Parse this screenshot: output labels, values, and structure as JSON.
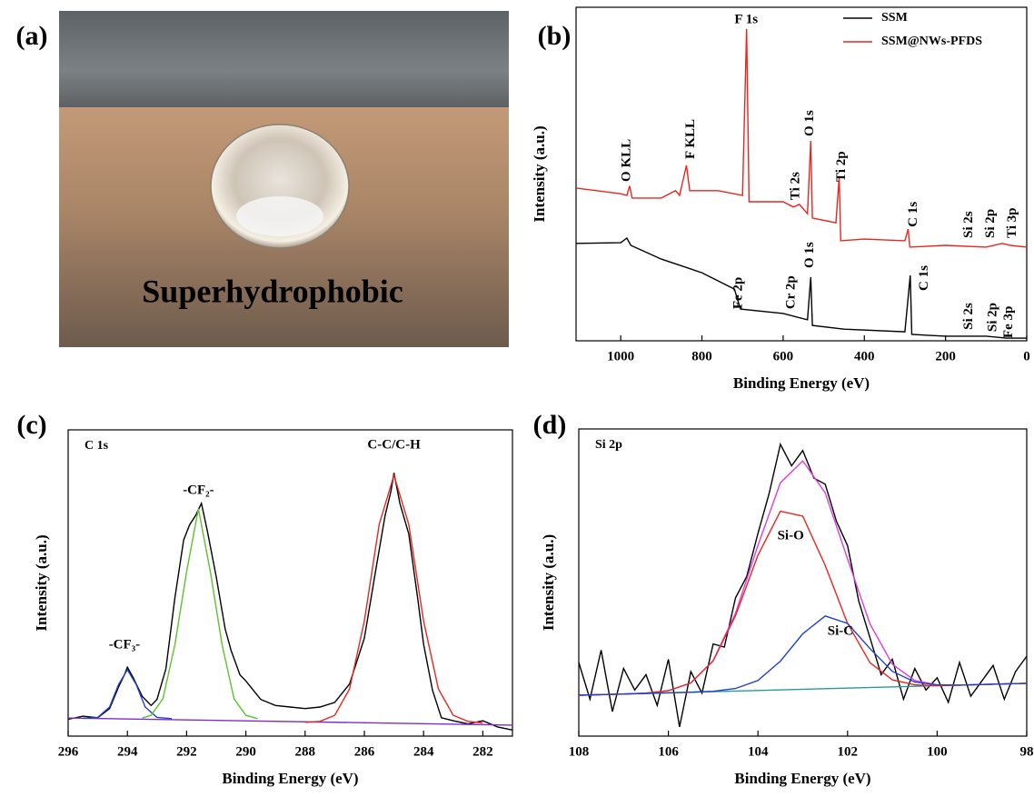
{
  "photo": {
    "label": "(a)",
    "caption": "Superhydrophobic"
  },
  "chart_data": [
    {
      "type": "line",
      "panel_label": "(b)",
      "xlabel": "Binding Energy (eV)",
      "ylabel": "Intensity (a.u.)",
      "xlim": [
        1110,
        0
      ],
      "xticks": [
        1000,
        800,
        600,
        400,
        200,
        0
      ],
      "ylim": [
        0,
        100
      ],
      "legend": true,
      "series": [
        {
          "name": "SSM",
          "color": "#000000",
          "x": [
            1110,
            1000,
            985,
            975,
            900,
            800,
            720,
            712,
            705,
            600,
            540,
            532,
            528,
            450,
            300,
            287,
            283,
            200,
            100,
            50,
            0
          ],
          "values": [
            29.2,
            29.4,
            30.8,
            28.6,
            24.5,
            20.4,
            15.5,
            12.3,
            9.5,
            8.2,
            6.3,
            19.1,
            4.6,
            3.5,
            2.7,
            19.6,
            1.9,
            1.4,
            1.4,
            0.8,
            0.8
          ]
        },
        {
          "name": "SSM@NWs-PFDS",
          "color": "#e8261f",
          "x": [
            1110,
            1000,
            985,
            978,
            972,
            900,
            865,
            855,
            838,
            830,
            760,
            700,
            690,
            684,
            600,
            575,
            560,
            540,
            532,
            528,
            470,
            462,
            458,
            400,
            300,
            292,
            288,
            200,
            100,
            60,
            40,
            0
          ],
          "values": [
            45.8,
            44.1,
            43.6,
            46.4,
            42.8,
            42.8,
            45.0,
            43.6,
            52.6,
            45.0,
            45.0,
            43.6,
            93.5,
            41.7,
            41.7,
            40.1,
            40.9,
            38.1,
            59.9,
            36.8,
            35.4,
            49.0,
            30.0,
            30.5,
            30.0,
            33.5,
            28.1,
            28.6,
            28.1,
            29.2,
            28.6,
            28.1
          ]
        }
      ],
      "annotations": [
        {
          "text": "O KLL",
          "x": 984,
          "y": 47.7,
          "vertical": true
        },
        {
          "text": "F KLL",
          "x": 827,
          "y": 54.5,
          "vertical": true
        },
        {
          "text": "F 1s",
          "x": 691,
          "y": 96.2,
          "vertical": false
        },
        {
          "text": "Ti 2s",
          "x": 568,
          "y": 42.2,
          "vertical": true
        },
        {
          "text": "O 1s",
          "x": 534,
          "y": 61.3,
          "vertical": true
        },
        {
          "text": "Ti 2p",
          "x": 455,
          "y": 47.7,
          "vertical": true
        },
        {
          "text": "C 1s",
          "x": 279,
          "y": 34.1,
          "vertical": true
        },
        {
          "text": "Si 2s",
          "x": 142,
          "y": 30.8,
          "vertical": true
        },
        {
          "text": "Si 2p",
          "x": 88,
          "y": 30.8,
          "vertical": true
        },
        {
          "text": "Ti 3p",
          "x": 34,
          "y": 30.8,
          "vertical": true
        },
        {
          "text": "Fe 2p",
          "x": 709,
          "y": 9.5,
          "vertical": true
        },
        {
          "text": "Cr 2p",
          "x": 579,
          "y": 9.5,
          "vertical": true
        },
        {
          "text": "O 1s",
          "x": 534,
          "y": 21.8,
          "vertical": true
        },
        {
          "text": "C 1s",
          "x": 252,
          "y": 15.0,
          "vertical": true
        },
        {
          "text": "Si 2s",
          "x": 142,
          "y": 3.3,
          "vertical": true
        },
        {
          "text": "Si 2p",
          "x": 83,
          "y": 2.7,
          "vertical": true
        },
        {
          "text": "Fe 3p",
          "x": 43,
          "y": 0.8,
          "vertical": true
        }
      ]
    },
    {
      "type": "line",
      "panel_label": "(c)",
      "inset_label": "C 1s",
      "xlabel": "Binding Energy (eV)",
      "ylabel": "Intensity (a.u.)",
      "xlim": [
        296,
        281
      ],
      "xticks": [
        296,
        294,
        292,
        290,
        288,
        286,
        284,
        282
      ],
      "ylim": [
        0,
        100
      ],
      "legend": false,
      "series": [
        {
          "color": "#000000",
          "x": [
            296,
            295.5,
            295,
            294.6,
            294.3,
            294.1,
            294,
            293.8,
            293.5,
            293.2,
            293,
            292.7,
            292.4,
            292.1,
            291.9,
            291.7,
            291.5,
            291.3,
            291,
            290.7,
            290.5,
            290.2,
            290,
            289.5,
            289,
            288.5,
            288,
            287.5,
            287,
            286.5,
            286,
            285.6,
            285.3,
            285.1,
            285,
            284.8,
            284.5,
            284.2,
            284,
            283.7,
            283.4,
            283,
            282.5,
            282,
            281.5,
            281
          ],
          "values": [
            5.5,
            6.5,
            6,
            9,
            16,
            20,
            22.5,
            19,
            13,
            10,
            12,
            22,
            45,
            64,
            69,
            72,
            76,
            67,
            52,
            35,
            28,
            20,
            18,
            12,
            10,
            9.5,
            9,
            9.5,
            11,
            17,
            32,
            55,
            72,
            80,
            86,
            76,
            66,
            45,
            30,
            15,
            6,
            5,
            4,
            5,
            3,
            2
          ]
        },
        {
          "color": "#7b2fd0",
          "x": [
            296,
            281
          ],
          "values": [
            5.9,
            3.6
          ]
        },
        {
          "color": "#1f3fd1",
          "x": [
            295.5,
            295,
            294.6,
            294.3,
            294,
            293.7,
            293.4,
            293,
            292.5
          ],
          "values": [
            5.8,
            6.1,
            9.5,
            16.8,
            21.7,
            16.8,
            9.5,
            6.1,
            5.7
          ]
        },
        {
          "color": "#5cc42b",
          "x": [
            293.5,
            293.2,
            292.8,
            292.4,
            292,
            291.6,
            291.2,
            290.8,
            290.4,
            290,
            289.6
          ],
          "values": [
            5.9,
            6.8,
            12.2,
            29.7,
            53.7,
            74.2,
            53.7,
            29.7,
            12.2,
            6.8,
            5.7
          ]
        },
        {
          "color": "#e8261f",
          "x": [
            288,
            287.5,
            287,
            286.5,
            286,
            285.5,
            285,
            284.5,
            284,
            283.5,
            283,
            282.5,
            282
          ],
          "values": [
            4.5,
            4.8,
            6.8,
            15.4,
            37.6,
            69.1,
            85.2,
            69.1,
            37.6,
            15.4,
            6.8,
            4.8,
            4.3
          ]
        }
      ],
      "annotations": [
        {
          "text": "-CF₃-",
          "x": 294.1,
          "y": 29.7,
          "vertical": false
        },
        {
          "text": "-CF₂-",
          "x": 291.6,
          "y": 80.1,
          "vertical": false
        },
        {
          "text": "C-C/C-H",
          "x": 285.0,
          "y": 95.0,
          "vertical": false
        }
      ]
    },
    {
      "type": "line",
      "panel_label": "(d)",
      "inset_label": "Si 2p",
      "xlabel": "Binding Energy (eV)",
      "ylabel": "Intensity (a.u.)",
      "xlim": [
        108,
        98
      ],
      "xticks": [
        108,
        106,
        104,
        102,
        100,
        98
      ],
      "ylim": [
        0,
        100
      ],
      "legend": false,
      "series": [
        {
          "color": "#000000",
          "x": [
            108,
            107.75,
            107.5,
            107.25,
            107,
            106.75,
            106.5,
            106.25,
            106,
            105.75,
            105.5,
            105.25,
            105,
            104.75,
            104.5,
            104.25,
            104,
            103.75,
            103.5,
            103.25,
            103,
            102.75,
            102.5,
            102.25,
            102,
            101.75,
            101.5,
            101.25,
            101,
            100.75,
            100.5,
            100.25,
            100,
            99.75,
            99.5,
            99.25,
            99,
            98.75,
            98.5,
            98.25,
            98
          ],
          "values": [
            24,
            12,
            28,
            8,
            22,
            15,
            20,
            10,
            25,
            3,
            21,
            14,
            30,
            29,
            45,
            52,
            66,
            79,
            95,
            88,
            93,
            84,
            82,
            70,
            62,
            44,
            32,
            20,
            25,
            12,
            22,
            15,
            19,
            11,
            24,
            13,
            18,
            23,
            12,
            21,
            26
          ]
        },
        {
          "color": "#2a9a9a",
          "x": [
            108,
            98
          ],
          "values": [
            13.3,
            17.2
          ]
        },
        {
          "color": "#e03ce0",
          "x": [
            108,
            107,
            106.5,
            106,
            105.5,
            105,
            104.5,
            104,
            103.5,
            103,
            102.5,
            102,
            101.5,
            101,
            100.5,
            100,
            99.5,
            99,
            98
          ],
          "values": [
            13.3,
            13.7,
            14.0,
            14.8,
            17.3,
            24.6,
            40.0,
            62.1,
            82.5,
            89.6,
            79.2,
            57.7,
            36.5,
            23.4,
            18.1,
            16.7,
            16.6,
            16.8,
            17.2
          ]
        },
        {
          "color": "#e8261f",
          "x": [
            108,
            107,
            106.5,
            106,
            105.5,
            105,
            104.5,
            104,
            103.5,
            103,
            102.5,
            102,
            101.5,
            101,
            100.5,
            100,
            99.5,
            99,
            98
          ],
          "values": [
            13.3,
            13.7,
            14.0,
            14.8,
            17.3,
            24.5,
            39.2,
            58.9,
            73.2,
            71.6,
            55.6,
            36.7,
            23.9,
            18.3,
            16.7,
            16.4,
            16.6,
            16.8,
            17.2
          ]
        },
        {
          "color": "#1f3fd1",
          "x": [
            108,
            107,
            106.5,
            106,
            105.5,
            105,
            104.5,
            104,
            103.5,
            103,
            102.5,
            102,
            101.5,
            101,
            100.5,
            100,
            99.5,
            99,
            98
          ],
          "values": [
            13.3,
            13.7,
            13.9,
            14.1,
            14.3,
            14.6,
            15.5,
            18.1,
            24.4,
            33.3,
            39.1,
            36.7,
            28.5,
            21.1,
            17.6,
            16.7,
            16.6,
            16.8,
            17.2
          ]
        }
      ],
      "annotations": [
        {
          "text": "Si-O",
          "x": 103.27,
          "y": 65.1,
          "vertical": false
        },
        {
          "text": "Si-C",
          "x": 102.16,
          "y": 34.0,
          "vertical": false
        }
      ]
    }
  ]
}
